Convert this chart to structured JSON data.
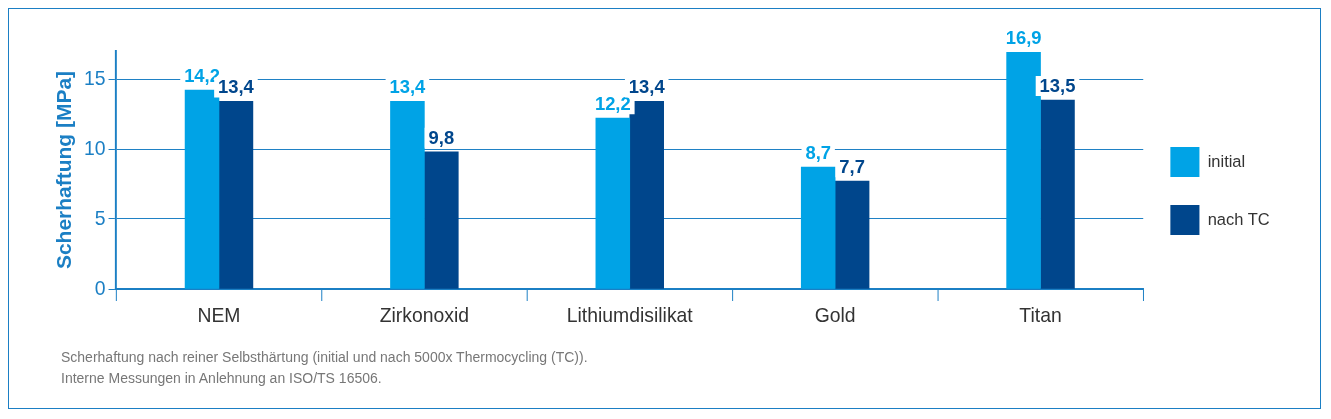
{
  "chart_data": {
    "type": "bar",
    "ylabel": "Scherhaftung [MPa]",
    "categories": [
      "NEM",
      "Zirkonoxid",
      "Lithiumdisilikat",
      "Gold",
      "Titan"
    ],
    "series": [
      {
        "name": "initial",
        "color": "#00a3e6",
        "values": [
          14.2,
          13.4,
          12.2,
          8.7,
          16.9
        ],
        "value_labels": [
          "14,2",
          "13,4",
          "12,2",
          "8,7",
          "16,9"
        ]
      },
      {
        "name": "nach TC",
        "color": "#00468c",
        "values": [
          13.4,
          9.8,
          13.4,
          7.7,
          13.5
        ],
        "value_labels": [
          "13,4",
          "9,8",
          "13,4",
          "7,7",
          "13,5"
        ]
      }
    ],
    "ylim": [
      0,
      17
    ],
    "yticks": [
      0,
      5,
      10,
      15
    ],
    "grid": "y",
    "legend": "right",
    "annotations": [
      "Scherhaftung nach reiner Selbsthärtung (initial und nach 5000x Thermocycling (TC)).",
      "Interne Messungen in Anlehnung an ISO/TS 16506."
    ]
  }
}
